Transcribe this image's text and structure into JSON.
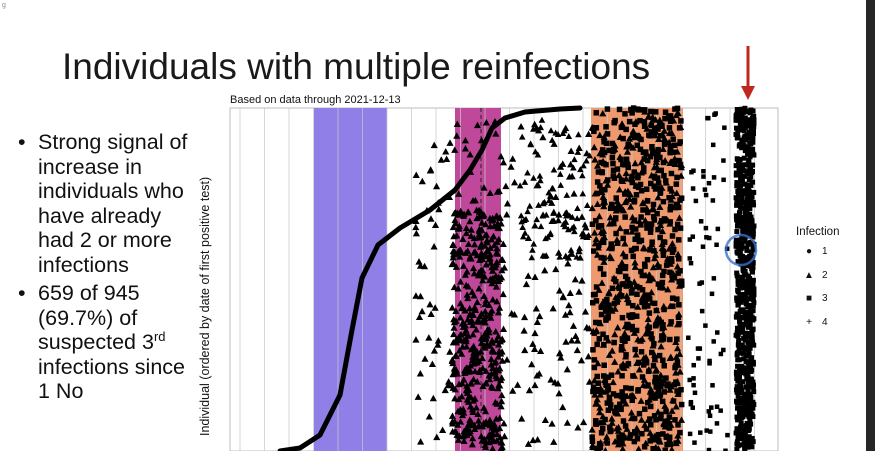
{
  "slide": {
    "corner_mark": "g",
    "title": "Individuals with multiple reinfections",
    "subtitle": "Based on data through 2021-12-13",
    "bullets": [
      {
        "text": "Strong signal of increase in individuals who have already had 2 or more infections"
      },
      {
        "text_before": "659 of 945 (69.7%) of suspected 3",
        "sup": "rd",
        "text_after": " infections since 1 No"
      }
    ]
  },
  "chart_data": {
    "type": "scatter",
    "subtitle": "Based on data through 2021-12-13",
    "ylabel": "Individual (ordered by date of first positive test)",
    "legend": {
      "title": "Infection",
      "entries": [
        {
          "label": "1",
          "marker": "dot"
        },
        {
          "label": "2",
          "marker": "triangle"
        },
        {
          "label": "3",
          "marker": "square"
        },
        {
          "label": "4",
          "marker": "plus"
        }
      ]
    },
    "colors": {
      "wave_blue": "#8f7fe6",
      "wave_magenta": "#c0489a",
      "wave_orange": "#ef9a6e",
      "marker": "#000000",
      "annotation_arrow": "#c0281f",
      "highlight_circle": "#3a6fd0"
    }
  }
}
